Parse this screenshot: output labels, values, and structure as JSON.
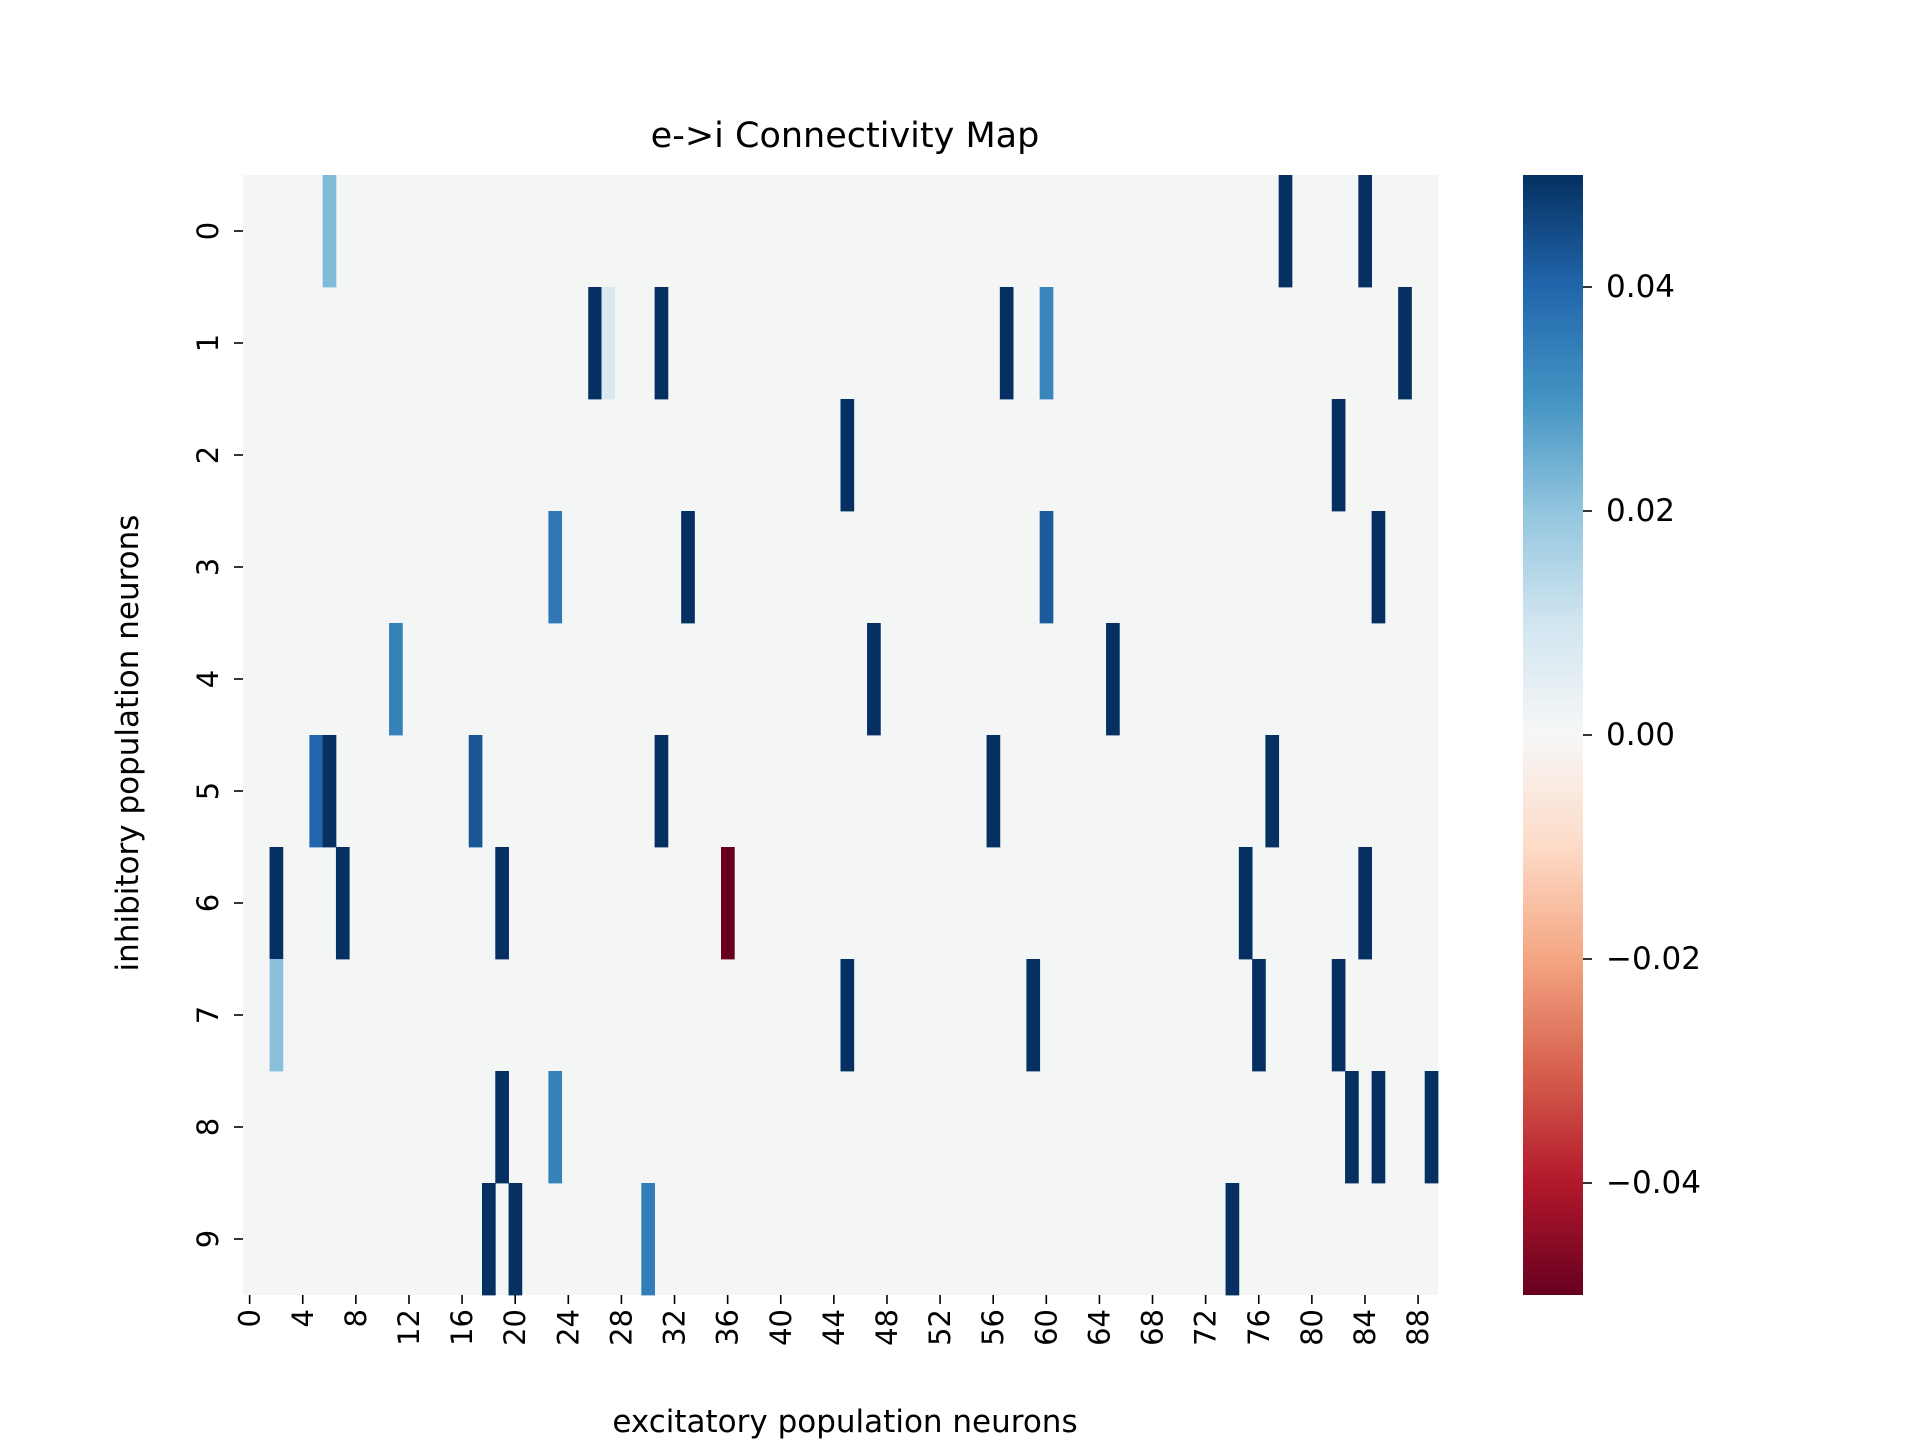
{
  "chart_data": {
    "type": "heatmap",
    "title": "e->i Connectivity Map",
    "xlabel": "excitatory population neurons",
    "ylabel": "inhibitory population neurons",
    "n_cols": 90,
    "n_rows": 10,
    "x_ticks": [
      0,
      4,
      8,
      12,
      16,
      20,
      24,
      28,
      32,
      36,
      40,
      44,
      48,
      52,
      56,
      60,
      64,
      68,
      72,
      76,
      80,
      84,
      88
    ],
    "y_ticks": [
      0,
      1,
      2,
      3,
      4,
      5,
      6,
      7,
      8,
      9
    ],
    "colorbar": {
      "vmin": -0.05,
      "vmax": 0.05,
      "ticks": [
        0.04,
        0.02,
        0.0,
        -0.02,
        -0.04
      ],
      "tick_labels": [
        "0.04",
        "0.02",
        "0.00",
        "−0.02",
        "−0.04"
      ],
      "colormap": "RdBu",
      "stops": [
        "#67001f",
        "#b2182b",
        "#d6604d",
        "#f4a582",
        "#fddbc7",
        "#f7f7f7",
        "#d1e5f0",
        "#92c5de",
        "#4393c3",
        "#2166ac",
        "#053061"
      ]
    },
    "background_value": 0.0,
    "background_color": "#f4f6f6",
    "cells": [
      {
        "row": 0,
        "col": 6,
        "value": 0.022
      },
      {
        "row": 0,
        "col": 78,
        "value": 0.05
      },
      {
        "row": 0,
        "col": 84,
        "value": 0.05
      },
      {
        "row": 1,
        "col": 26,
        "value": 0.05
      },
      {
        "row": 1,
        "col": 27,
        "value": 0.008
      },
      {
        "row": 1,
        "col": 31,
        "value": 0.05
      },
      {
        "row": 1,
        "col": 57,
        "value": 0.05
      },
      {
        "row": 1,
        "col": 60,
        "value": 0.033
      },
      {
        "row": 1,
        "col": 87,
        "value": 0.05
      },
      {
        "row": 2,
        "col": 45,
        "value": 0.05
      },
      {
        "row": 2,
        "col": 82,
        "value": 0.05
      },
      {
        "row": 3,
        "col": 23,
        "value": 0.036
      },
      {
        "row": 3,
        "col": 33,
        "value": 0.05
      },
      {
        "row": 3,
        "col": 60,
        "value": 0.042
      },
      {
        "row": 3,
        "col": 85,
        "value": 0.05
      },
      {
        "row": 4,
        "col": 11,
        "value": 0.034
      },
      {
        "row": 4,
        "col": 47,
        "value": 0.05
      },
      {
        "row": 4,
        "col": 65,
        "value": 0.05
      },
      {
        "row": 5,
        "col": 5,
        "value": 0.04
      },
      {
        "row": 5,
        "col": 6,
        "value": 0.05
      },
      {
        "row": 5,
        "col": 17,
        "value": 0.043
      },
      {
        "row": 5,
        "col": 31,
        "value": 0.05
      },
      {
        "row": 5,
        "col": 56,
        "value": 0.05
      },
      {
        "row": 5,
        "col": 77,
        "value": 0.05
      },
      {
        "row": 6,
        "col": 2,
        "value": 0.05
      },
      {
        "row": 6,
        "col": 7,
        "value": 0.05
      },
      {
        "row": 6,
        "col": 19,
        "value": 0.05
      },
      {
        "row": 6,
        "col": 36,
        "value": -0.05
      },
      {
        "row": 6,
        "col": 75,
        "value": 0.05
      },
      {
        "row": 6,
        "col": 84,
        "value": 0.05
      },
      {
        "row": 7,
        "col": 2,
        "value": 0.021
      },
      {
        "row": 7,
        "col": 45,
        "value": 0.05
      },
      {
        "row": 7,
        "col": 59,
        "value": 0.05
      },
      {
        "row": 7,
        "col": 76,
        "value": 0.05
      },
      {
        "row": 7,
        "col": 82,
        "value": 0.05
      },
      {
        "row": 8,
        "col": 19,
        "value": 0.05
      },
      {
        "row": 8,
        "col": 23,
        "value": 0.034
      },
      {
        "row": 8,
        "col": 83,
        "value": 0.05
      },
      {
        "row": 8,
        "col": 85,
        "value": 0.05
      },
      {
        "row": 8,
        "col": 89,
        "value": 0.05
      },
      {
        "row": 9,
        "col": 18,
        "value": 0.05
      },
      {
        "row": 9,
        "col": 20,
        "value": 0.05
      },
      {
        "row": 9,
        "col": 30,
        "value": 0.035
      },
      {
        "row": 9,
        "col": 74,
        "value": 0.05
      }
    ]
  }
}
